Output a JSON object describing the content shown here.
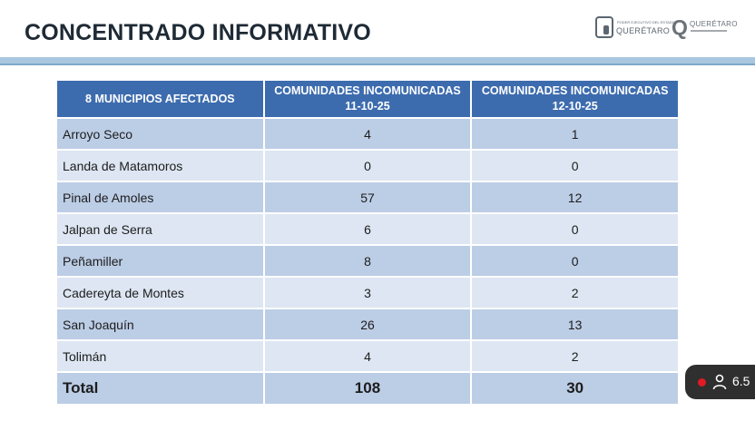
{
  "title": "CONCENTRADO INFORMATIVO",
  "logos": {
    "gob_small_text": "PODER EJECUTIVO DEL ESTADO",
    "gob_big_text": "QUERÉTARO",
    "q_letter": "Q",
    "q_text": "QUERÉTARO"
  },
  "table": {
    "headers": [
      "8 MUNICIPIOS AFECTADOS",
      "COMUNIDADES INCOMUNICADAS 11-10-25",
      "COMUNIDADES INCOMUNICADAS 12-10-25"
    ],
    "rows": [
      {
        "municipio": "Arroyo Seco",
        "d1": "4",
        "d2": "1"
      },
      {
        "municipio": "Landa de Matamoros",
        "d1": "0",
        "d2": "0"
      },
      {
        "municipio": "Pinal de Amoles",
        "d1": "57",
        "d2": "12"
      },
      {
        "municipio": "Jalpan de Serra",
        "d1": "6",
        "d2": "0"
      },
      {
        "municipio": "Peñamiller",
        "d1": "8",
        "d2": "0"
      },
      {
        "municipio": "Cadereyta de Montes",
        "d1": "3",
        "d2": "2"
      },
      {
        "municipio": "San Joaquín",
        "d1": "26",
        "d2": "13"
      },
      {
        "municipio": "Tolimán",
        "d1": "4",
        "d2": "2"
      }
    ],
    "total": {
      "label": "Total",
      "d1": "108",
      "d2": "30"
    }
  },
  "viewer_badge": {
    "count": "6.5",
    "live_dot_color": "#e01b24"
  },
  "colors": {
    "header_bg": "#3d6cae",
    "row_dark": "#bccde6",
    "row_light": "#dde6f2",
    "rule": "#a9c7df"
  }
}
